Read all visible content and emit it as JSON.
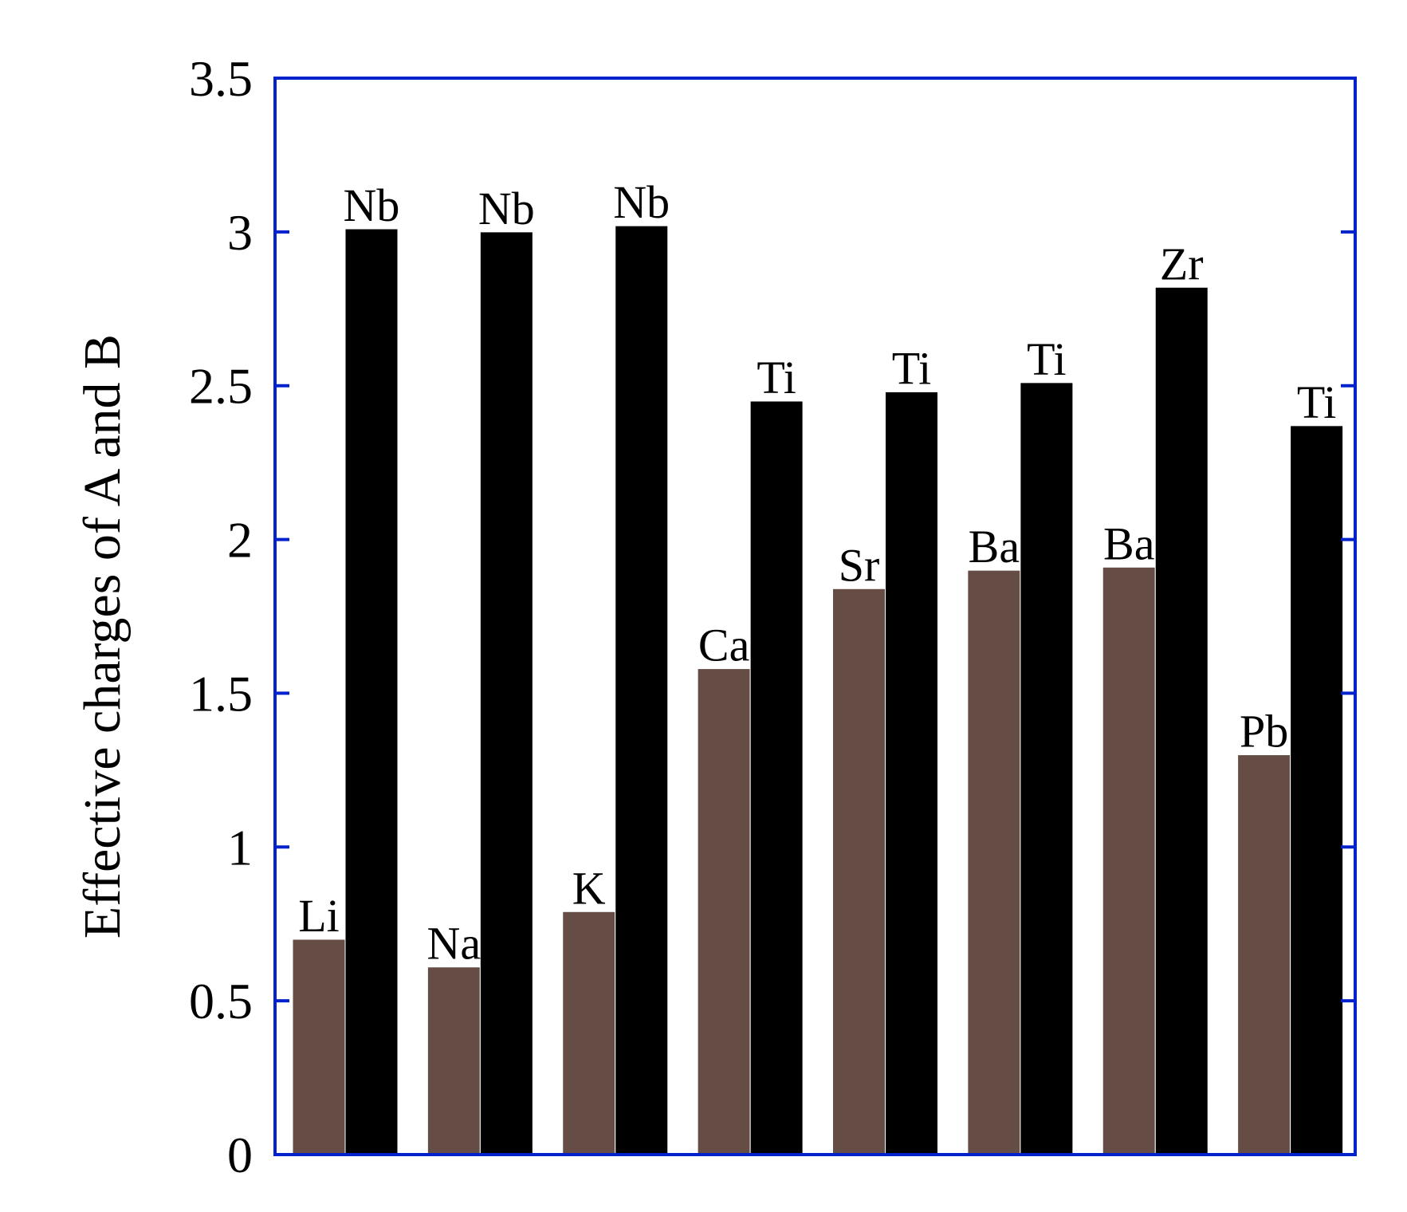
{
  "chart_data": {
    "type": "bar",
    "ylabel": "Effective charges of A and B",
    "xlabel": "",
    "ylim": [
      0,
      3.5
    ],
    "yticks": [
      "0",
      "0.5",
      "1",
      "1.5",
      "2",
      "2.5",
      "3",
      "3.5"
    ],
    "grid": false,
    "groups": [
      {
        "a_label": "Li",
        "a_value": 0.7,
        "b_label": "Nb",
        "b_value": 3.01
      },
      {
        "a_label": "Na",
        "a_value": 0.61,
        "b_label": "Nb",
        "b_value": 3.0
      },
      {
        "a_label": "K",
        "a_value": 0.79,
        "b_label": "Nb",
        "b_value": 3.02
      },
      {
        "a_label": "Ca",
        "a_value": 1.58,
        "b_label": "Ti",
        "b_value": 2.45
      },
      {
        "a_label": "Sr",
        "a_value": 1.84,
        "b_label": "Ti",
        "b_value": 2.48
      },
      {
        "a_label": "Ba",
        "a_value": 1.9,
        "b_label": "Ti",
        "b_value": 2.51
      },
      {
        "a_label": "Ba",
        "a_value": 1.91,
        "b_label": "Zr",
        "b_value": 2.82
      },
      {
        "a_label": "Pb",
        "a_value": 1.3,
        "b_label": "Ti",
        "b_value": 2.37
      }
    ],
    "colors": {
      "a": "#654d45",
      "b": "#000000",
      "frame": "#0022cc"
    }
  }
}
